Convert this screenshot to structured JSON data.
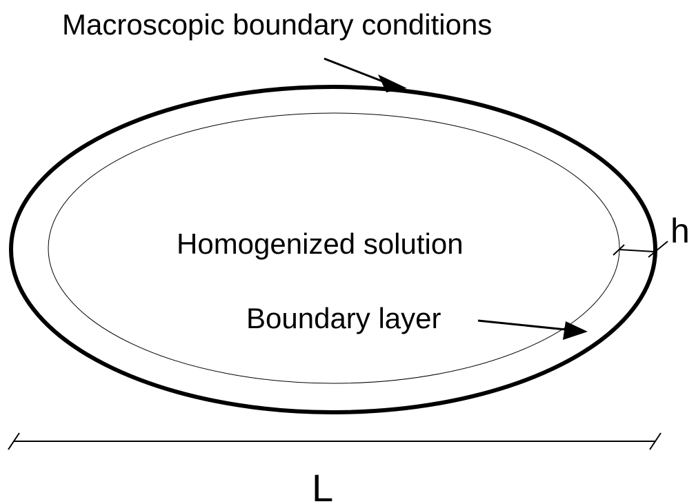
{
  "labels": {
    "macroscopic": "Macroscopic boundary conditions",
    "homogenized": "Homogenized solution",
    "boundary_layer": "Boundary layer",
    "h": "h",
    "L": "L"
  }
}
